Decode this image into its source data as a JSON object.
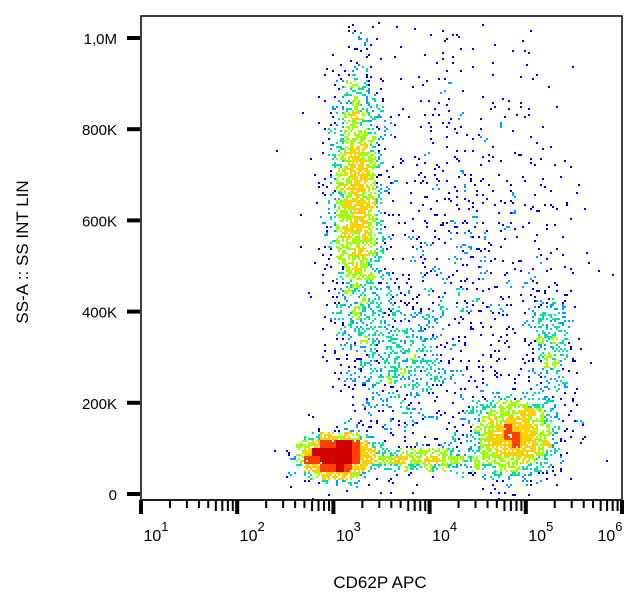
{
  "chart_data": {
    "type": "scatter",
    "subtype": "density-dot-plot",
    "title": "",
    "xlabel": "CD62P APC",
    "ylabel": "SS-A :: SS INT LIN",
    "x_scale": "log",
    "xlim": [
      10,
      1000000
    ],
    "ylim": [
      0,
      1050000
    ],
    "x_ticks": [
      {
        "value": 10,
        "base": "10",
        "exp": "1"
      },
      {
        "value": 100,
        "base": "10",
        "exp": "2"
      },
      {
        "value": 1000,
        "base": "10",
        "exp": "3"
      },
      {
        "value": 10000,
        "base": "10",
        "exp": "4"
      },
      {
        "value": 100000,
        "base": "10",
        "exp": "5"
      },
      {
        "value": 1000000,
        "base": "10",
        "exp": "6"
      }
    ],
    "y_ticks": [
      {
        "value": 0,
        "label": "0"
      },
      {
        "value": 200000,
        "label": "200K"
      },
      {
        "value": 400000,
        "label": "400K"
      },
      {
        "value": 600000,
        "label": "600K"
      },
      {
        "value": 800000,
        "label": "800K"
      },
      {
        "value": 1000000,
        "label": "1,0M"
      }
    ],
    "populations": [
      {
        "x_center": 1050,
        "y_center": 85000,
        "x_spread_log": 0.16,
        "y_spread": 22000,
        "count": 2600
      },
      {
        "x_center": 1700,
        "y_center": 640000,
        "x_spread_log": 0.13,
        "y_spread": 140000,
        "count": 2200
      },
      {
        "x_center": 75000,
        "y_center": 130000,
        "x_spread_log": 0.22,
        "y_spread": 45000,
        "count": 1600
      },
      {
        "x_center": 180000,
        "y_center": 330000,
        "x_spread_log": 0.12,
        "y_spread": 60000,
        "count": 300
      },
      {
        "x_center": 8000,
        "y_center": 80000,
        "x_spread_log": 0.35,
        "y_spread": 15000,
        "count": 500
      },
      {
        "x_center": 5000,
        "y_center": 300000,
        "x_spread_log": 0.3,
        "y_spread": 80000,
        "count": 600
      },
      {
        "x_center": 20000,
        "y_center": 500000,
        "x_spread_log": 0.6,
        "y_spread": 250000,
        "count": 900
      }
    ],
    "density_colors": [
      "#0000ff",
      "#00a0ff",
      "#00e0a0",
      "#a0ff00",
      "#ffd000",
      "#ff4000",
      "#d00000"
    ],
    "grid": false,
    "legend": "none"
  }
}
